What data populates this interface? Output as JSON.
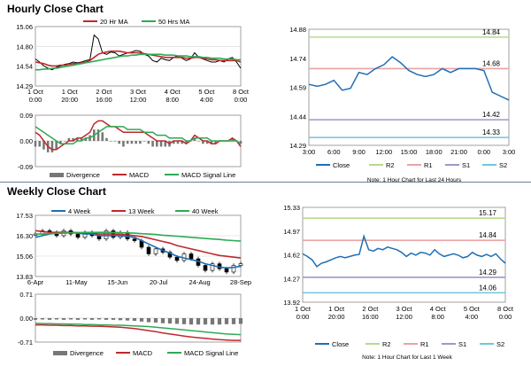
{
  "sections": {
    "hourly_title": "Hourly Close Chart",
    "weekly_title": "Weekly Close Chart"
  },
  "colors": {
    "close": "#1f6fb4",
    "r2": "#b7d98b",
    "r1": "#e9a3a3",
    "s1": "#a494c6",
    "s2": "#6fc6df",
    "ma_short": "#c0282a",
    "ma_long": "#2eaa55",
    "divergence": "#777777",
    "price_bar": "#000000"
  },
  "chart_data": [
    {
      "id": "hourly-price",
      "type": "line",
      "ylim": [
        14.29,
        15.06
      ],
      "yticks": [
        "15.06",
        "14.80",
        "14.54",
        "14.29"
      ],
      "xticks": [
        "1 Oct\n0:00",
        "1 Oct\n20:00",
        "2 Oct\n16:00",
        "3 Oct\n12:00",
        "4 Oct\n8:00",
        "5 Oct\n4:00",
        "8 Oct\n0:00"
      ],
      "legend": [
        "20 Hr MA",
        "50 Hrs MA"
      ],
      "series": [
        {
          "name": "Close",
          "values": [
            14.64,
            14.6,
            14.55,
            14.52,
            14.5,
            14.53,
            14.55,
            14.57,
            14.58,
            14.6,
            14.59,
            14.6,
            14.62,
            14.63,
            14.95,
            14.9,
            14.72,
            14.7,
            14.73,
            14.72,
            14.68,
            14.7,
            14.72,
            14.73,
            14.75,
            14.74,
            14.7,
            14.68,
            14.62,
            14.6,
            14.65,
            14.63,
            14.62,
            14.66,
            14.68,
            14.65,
            14.62,
            14.64,
            14.72,
            14.66,
            14.64,
            14.62,
            14.6,
            14.6,
            14.62,
            14.6,
            14.64,
            14.66,
            14.6,
            14.52
          ]
        },
        {
          "name": "20 Hr MA",
          "values": [
            14.6,
            14.59,
            14.58,
            14.56,
            14.55,
            14.55,
            14.56,
            14.56,
            14.57,
            14.58,
            14.58,
            14.59,
            14.6,
            14.62,
            14.66,
            14.7,
            14.72,
            14.73,
            14.74,
            14.74,
            14.74,
            14.73,
            14.72,
            14.72,
            14.72,
            14.72,
            14.71,
            14.7,
            14.69,
            14.68,
            14.67,
            14.66,
            14.66,
            14.66,
            14.66,
            14.66,
            14.65,
            14.65,
            14.66,
            14.66,
            14.65,
            14.64,
            14.63,
            14.63,
            14.62,
            14.62,
            14.62,
            14.62,
            14.62,
            14.6
          ]
        },
        {
          "name": "50 Hrs MA",
          "values": [
            14.5,
            14.5,
            14.51,
            14.51,
            14.52,
            14.52,
            14.53,
            14.54,
            14.55,
            14.56,
            14.57,
            14.58,
            14.59,
            14.6,
            14.61,
            14.62,
            14.63,
            14.64,
            14.65,
            14.66,
            14.67,
            14.68,
            14.68,
            14.69,
            14.69,
            14.7,
            14.7,
            14.7,
            14.7,
            14.7,
            14.7,
            14.69,
            14.69,
            14.69,
            14.68,
            14.68,
            14.68,
            14.67,
            14.67,
            14.67,
            14.66,
            14.66,
            14.65,
            14.65,
            14.65,
            14.64,
            14.64,
            14.64,
            14.63,
            14.63
          ]
        }
      ]
    },
    {
      "id": "hourly-macd",
      "type": "line",
      "ylim": [
        -0.09,
        0.09
      ],
      "yticks": [
        "0.09",
        "0.00",
        "-0.09"
      ],
      "legend": [
        "Divergence",
        "MACD",
        "MACD Signal Line"
      ],
      "series": [
        {
          "name": "MACD",
          "values": [
            0.03,
            0.02,
            0.0,
            -0.02,
            -0.03,
            -0.03,
            -0.02,
            -0.01,
            0.0,
            0.0,
            0.01,
            0.01,
            0.02,
            0.03,
            0.06,
            0.07,
            0.07,
            0.06,
            0.05,
            0.05,
            0.04,
            0.03,
            0.03,
            0.03,
            0.03,
            0.03,
            0.03,
            0.02,
            0.01,
            0.0,
            0.0,
            0.0,
            -0.01,
            0.0,
            0.0,
            0.0,
            -0.01,
            0.0,
            0.02,
            0.01,
            0.0,
            0.0,
            -0.01,
            -0.01,
            0.0,
            0.0,
            0.0,
            0.01,
            0.0,
            -0.02
          ]
        },
        {
          "name": "MACD Signal Line",
          "values": [
            0.05,
            0.04,
            0.03,
            0.02,
            0.01,
            0.0,
            -0.01,
            -0.01,
            -0.01,
            -0.01,
            0.0,
            0.0,
            0.01,
            0.01,
            0.02,
            0.03,
            0.04,
            0.05,
            0.05,
            0.05,
            0.05,
            0.05,
            0.04,
            0.04,
            0.04,
            0.04,
            0.03,
            0.03,
            0.03,
            0.02,
            0.02,
            0.02,
            0.01,
            0.01,
            0.01,
            0.01,
            0.0,
            0.0,
            0.01,
            0.01,
            0.01,
            0.01,
            0.0,
            0.0,
            0.0,
            0.0,
            0.0,
            0.0,
            0.0,
            -0.01
          ]
        }
      ]
    },
    {
      "id": "hourly-levels",
      "type": "line",
      "ylim": [
        14.29,
        14.88
      ],
      "yticks": [
        "14.88",
        "14.74",
        "14.59",
        "14.44",
        "14.29"
      ],
      "xticks": [
        "3:00",
        "6:00",
        "9:00",
        "12:00",
        "15:00",
        "18:00",
        "21:00",
        "0:00",
        "3:00"
      ],
      "levels": [
        {
          "name": "R2",
          "value": 14.84,
          "label": "14.84"
        },
        {
          "name": "R1",
          "value": 14.68,
          "label": "14.68"
        },
        {
          "name": "S1",
          "value": 14.42,
          "label": "14.42"
        },
        {
          "name": "S2",
          "value": 14.33,
          "label": "14.33"
        }
      ],
      "legend": [
        "Close",
        "R2",
        "R1",
        "S1",
        "S2"
      ],
      "note": "Note: 1 Hour Chart for Last 24 Hours",
      "series": [
        {
          "name": "Close",
          "values": [
            14.6,
            14.59,
            14.6,
            14.62,
            14.57,
            14.58,
            14.66,
            14.65,
            14.68,
            14.7,
            14.74,
            14.71,
            14.67,
            14.65,
            14.64,
            14.65,
            14.68,
            14.66,
            14.68,
            14.68,
            14.68,
            14.67,
            14.56,
            14.54,
            14.52
          ]
        }
      ]
    },
    {
      "id": "weekly-price",
      "type": "line",
      "ylim": [
        13.83,
        17.53
      ],
      "yticks": [
        "17.53",
        "16.30",
        "15.06",
        "13.83"
      ],
      "xticks": [
        "6-Apr",
        "11-May",
        "15-Jun",
        "20-Jul",
        "24-Aug",
        "28-Sep"
      ],
      "legend": [
        "4 Week",
        "13 Week",
        "40 Week"
      ],
      "series": [
        {
          "name": "Close",
          "values": [
            16.4,
            16.6,
            16.5,
            16.3,
            16.6,
            16.4,
            16.2,
            16.5,
            16.3,
            16.1,
            16.6,
            16.2,
            16.5,
            16.1,
            16.0,
            15.6,
            15.2,
            15.5,
            15.3,
            15.0,
            14.8,
            15.2,
            14.9,
            14.5,
            14.2,
            14.6,
            14.3,
            14.1,
            14.5,
            14.6
          ]
        },
        {
          "name": "4 Week",
          "values": [
            16.2,
            16.3,
            16.4,
            16.45,
            16.5,
            16.48,
            16.45,
            16.4,
            16.4,
            16.3,
            16.3,
            16.3,
            16.3,
            16.25,
            16.2,
            16.0,
            15.8,
            15.6,
            15.4,
            15.25,
            15.05,
            14.95,
            14.85,
            14.75,
            14.6,
            14.5,
            14.4,
            14.35,
            14.38,
            14.45
          ]
        },
        {
          "name": "13 Week",
          "values": [
            16.6,
            16.55,
            16.5,
            16.5,
            16.5,
            16.5,
            16.48,
            16.45,
            16.45,
            16.4,
            16.4,
            16.4,
            16.38,
            16.35,
            16.3,
            16.25,
            16.15,
            16.05,
            15.95,
            15.85,
            15.7,
            15.6,
            15.5,
            15.4,
            15.3,
            15.2,
            15.1,
            15.05,
            15.0,
            14.95
          ]
        },
        {
          "name": "40 Week",
          "values": [
            16.4,
            16.4,
            16.42,
            16.44,
            16.45,
            16.47,
            16.48,
            16.5,
            16.5,
            16.5,
            16.5,
            16.5,
            16.48,
            16.47,
            16.45,
            16.42,
            16.4,
            16.37,
            16.33,
            16.3,
            16.27,
            16.23,
            16.2,
            16.17,
            16.13,
            16.1,
            16.07,
            16.03,
            16.0,
            15.97
          ]
        }
      ]
    },
    {
      "id": "weekly-macd",
      "type": "line",
      "ylim": [
        -0.71,
        0.71
      ],
      "yticks": [
        "0.71",
        "0.00",
        "-0.71"
      ],
      "legend": [
        "Divergence",
        "MACD",
        "MACD Signal Line"
      ],
      "series": [
        {
          "name": "MACD",
          "values": [
            -0.2,
            -0.2,
            -0.21,
            -0.21,
            -0.22,
            -0.22,
            -0.23,
            -0.23,
            -0.24,
            -0.24,
            -0.25,
            -0.26,
            -0.27,
            -0.29,
            -0.31,
            -0.34,
            -0.37,
            -0.4,
            -0.44,
            -0.47,
            -0.5,
            -0.53,
            -0.56,
            -0.58,
            -0.6,
            -0.62,
            -0.64,
            -0.65,
            -0.66,
            -0.66
          ]
        },
        {
          "name": "MACD Signal Line",
          "values": [
            -0.15,
            -0.16,
            -0.16,
            -0.17,
            -0.17,
            -0.18,
            -0.18,
            -0.19,
            -0.19,
            -0.2,
            -0.2,
            -0.21,
            -0.21,
            -0.22,
            -0.23,
            -0.24,
            -0.25,
            -0.27,
            -0.29,
            -0.31,
            -0.33,
            -0.35,
            -0.37,
            -0.39,
            -0.41,
            -0.43,
            -0.45,
            -0.47,
            -0.48,
            -0.49
          ]
        }
      ]
    },
    {
      "id": "weekly-levels",
      "type": "line",
      "ylim": [
        13.92,
        15.33
      ],
      "yticks": [
        "15.33",
        "14.97",
        "14.62",
        "14.27",
        "13.92"
      ],
      "xticks": [
        "1 Oct\n0:00",
        "1 Oct\n20:00",
        "2 Oct\n16:00",
        "3 Oct\n12:00",
        "4 Oct\n8:00",
        "5 Oct\n4:00",
        "8 Oct\n0:00"
      ],
      "levels": [
        {
          "name": "R2",
          "value": 15.17,
          "label": "15.17"
        },
        {
          "name": "R1",
          "value": 14.84,
          "label": "14.84"
        },
        {
          "name": "S1",
          "value": 14.29,
          "label": "14.29"
        },
        {
          "name": "S2",
          "value": 14.06,
          "label": "14.06"
        }
      ],
      "legend": [
        "Close",
        "R2",
        "R1",
        "S1",
        "S2"
      ],
      "note": "Note: 1 Hour Chart for Last 1 Week",
      "series": [
        {
          "name": "Close",
          "values": [
            14.64,
            14.6,
            14.55,
            14.45,
            14.5,
            14.52,
            14.55,
            14.58,
            14.6,
            14.58,
            14.6,
            14.62,
            14.63,
            14.9,
            14.7,
            14.68,
            14.72,
            14.7,
            14.74,
            14.72,
            14.7,
            14.66,
            14.6,
            14.65,
            14.62,
            14.66,
            14.65,
            14.62,
            14.7,
            14.64,
            14.6,
            14.62,
            14.64,
            14.62,
            14.58,
            14.6,
            14.66,
            14.62,
            14.6,
            14.63,
            14.6,
            14.64,
            14.56,
            14.5
          ]
        }
      ]
    }
  ]
}
